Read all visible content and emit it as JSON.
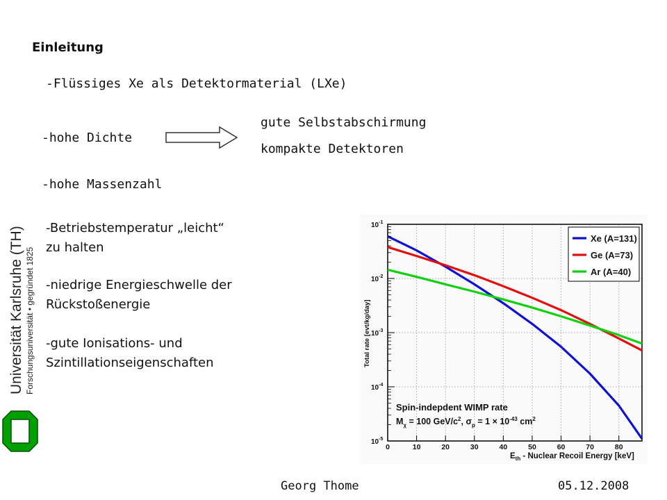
{
  "heading": "Einleitung",
  "subtitle": "-Flüssiges Xe als Detektormaterial (LXe)",
  "bullets": {
    "dichte": "-hohe Dichte",
    "result1": "gute Selbstabschirmung",
    "result2": "kompakte Detektoren",
    "massenzahl": "-hohe Massenzahl",
    "temp_line1": "-Betriebstemperatur „leicht“",
    "temp_line2": "zu halten",
    "schwelle_line1": "-niedrige Energieschwelle der",
    "schwelle_line2": "Rückstoßenergie",
    "ion_line1": "-gute Ionisations- und",
    "ion_line2": "Szintillationseigenschaften"
  },
  "logo": {
    "name": "Universität Karlsruhe (TH)",
    "tagline": "Forschungsuniversität • gegründet 1825",
    "icon": "kit-logo-icon",
    "color": "#00a000"
  },
  "footer": {
    "author": "Georg Thome",
    "date": "05.12.2008"
  },
  "chart_data": {
    "type": "line",
    "title": "Spin-indepdent WIMP rate",
    "annotation": "Mχ = 100 GeV/c², σp = 1 × 10⁻⁴³ cm²",
    "annotation_parts": {
      "m": "M",
      "m_sub": "χ",
      "m_val": " = 100 GeV/c",
      "m_exp": "2",
      "sep": ", ",
      "s": "σ",
      "s_sub": "p",
      "s_val": " = 1 × 10",
      "s_exp": "-43",
      "unit": " cm",
      "unit_exp": "2"
    },
    "xlabel": "E",
    "xlabel_sub": "th",
    "xlabel_rest": " - Nuclear Recoil Energy [keV]",
    "ylabel": "Total rate [evt/kg/day]",
    "xlim": [
      0,
      88
    ],
    "ylim_log10": [
      -5,
      -1
    ],
    "yscale": "log",
    "grid": true,
    "legend_position": "top-right",
    "x_ticks": [
      "0",
      "10",
      "20",
      "30",
      "40",
      "50",
      "60",
      "70",
      "80"
    ],
    "y_ticks": [
      {
        "base": "10",
        "exp": "-1"
      },
      {
        "base": "10",
        "exp": "-2"
      },
      {
        "base": "10",
        "exp": "-3"
      },
      {
        "base": "10",
        "exp": "-4"
      },
      {
        "base": "10",
        "exp": "-5"
      }
    ],
    "series": [
      {
        "name": "Xe (A=131)",
        "color": "#1010d0",
        "x": [
          0,
          10,
          20,
          30,
          40,
          50,
          60,
          70,
          80,
          88
        ],
        "y": [
          0.06,
          0.033,
          0.0165,
          0.0078,
          0.0035,
          0.00145,
          0.00055,
          0.000175,
          4.5e-05,
          1.1e-05
        ]
      },
      {
        "name": "Ge (A=73)",
        "color": "#e01010",
        "x": [
          0,
          10,
          20,
          30,
          40,
          50,
          60,
          70,
          80,
          88
        ],
        "y": [
          0.038,
          0.026,
          0.0175,
          0.0115,
          0.0072,
          0.0044,
          0.0026,
          0.00145,
          0.00078,
          0.00047
        ]
      },
      {
        "name": "Ar (A=40)",
        "color": "#10d010",
        "x": [
          0,
          10,
          20,
          30,
          40,
          50,
          60,
          70,
          80,
          88
        ],
        "y": [
          0.0145,
          0.0107,
          0.0078,
          0.0057,
          0.0041,
          0.0029,
          0.002,
          0.00135,
          0.0009,
          0.00063
        ]
      }
    ]
  }
}
